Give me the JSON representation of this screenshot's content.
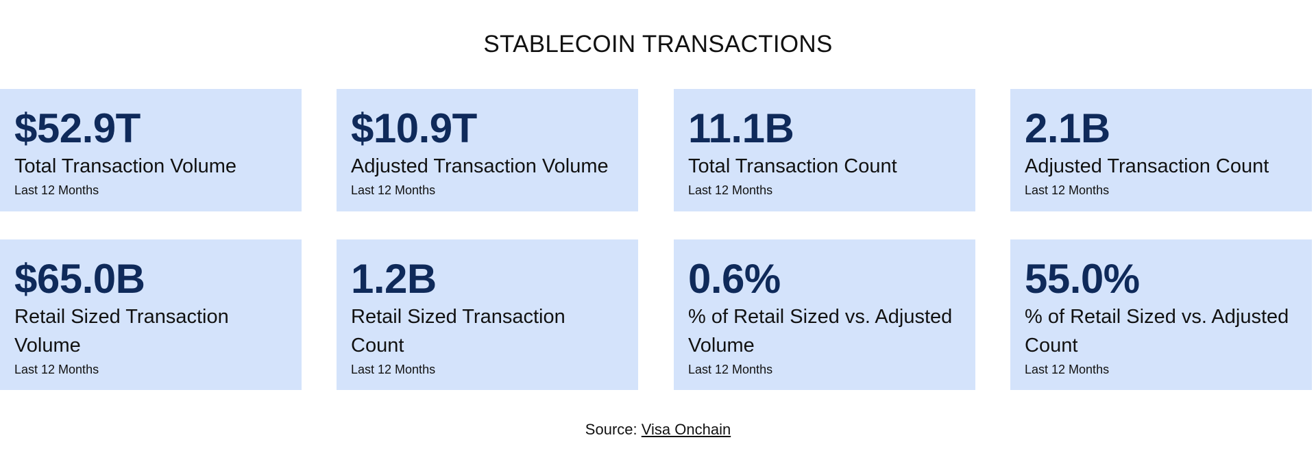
{
  "title": "STABLECOIN TRANSACTIONS",
  "colors": {
    "card_background": "#d4e3fb",
    "value_text": "#0f2a5a",
    "text": "#111111"
  },
  "cards": [
    {
      "value": "$52.9T",
      "label": "Total Transaction Volume",
      "period": "Last 12 Months"
    },
    {
      "value": "$10.9T",
      "label": "Adjusted Transaction Volume",
      "period": "Last 12 Months"
    },
    {
      "value": "11.1B",
      "label": "Total Transaction Count",
      "period": "Last 12 Months"
    },
    {
      "value": "2.1B",
      "label": "Adjusted Transaction Count",
      "period": "Last 12 Months"
    },
    {
      "value": "$65.0B",
      "label": "Retail Sized Transaction Volume",
      "period": "Last 12 Months"
    },
    {
      "value": "1.2B",
      "label": "Retail Sized Transaction Count",
      "period": "Last 12 Months"
    },
    {
      "value": "0.6%",
      "label": "% of Retail Sized vs. Adjusted Volume",
      "period": "Last 12 Months"
    },
    {
      "value": "55.0%",
      "label": "% of Retail Sized vs. Adjusted Count",
      "period": "Last 12 Months"
    }
  ],
  "source": {
    "prefix": "Source:",
    "link_text": "Visa Onchain"
  }
}
